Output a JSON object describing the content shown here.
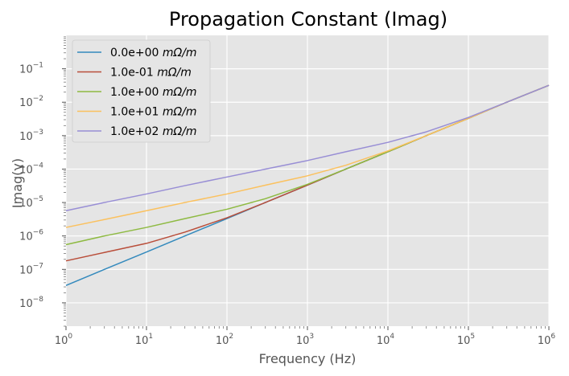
{
  "chart_data": {
    "type": "line",
    "title": "Propagation Constant (Imag)",
    "xlabel": "Frequency (Hz)",
    "ylabel": "Imag(γ)",
    "x_scale": "log",
    "y_scale": "log",
    "xlim": [
      1,
      1000000
    ],
    "ylim": [
      2e-09,
      1
    ],
    "grid": true,
    "legend_position": "upper-left",
    "background": "#E5E5E5",
    "x_ticks": [
      {
        "value": 1,
        "mantissa": "10",
        "exp": "0"
      },
      {
        "value": 10,
        "mantissa": "10",
        "exp": "1"
      },
      {
        "value": 100,
        "mantissa": "10",
        "exp": "2"
      },
      {
        "value": 1000,
        "mantissa": "10",
        "exp": "3"
      },
      {
        "value": 10000,
        "mantissa": "10",
        "exp": "4"
      },
      {
        "value": 100000,
        "mantissa": "10",
        "exp": "5"
      },
      {
        "value": 1000000,
        "mantissa": "10",
        "exp": "6"
      }
    ],
    "y_ticks": [
      {
        "value": 1e-08,
        "mantissa": "10",
        "exp": "−8"
      },
      {
        "value": 1e-07,
        "mantissa": "10",
        "exp": "−7"
      },
      {
        "value": 1e-06,
        "mantissa": "10",
        "exp": "−6"
      },
      {
        "value": 1e-05,
        "mantissa": "10",
        "exp": "−5"
      },
      {
        "value": 0.0001,
        "mantissa": "10",
        "exp": "−4"
      },
      {
        "value": 0.001,
        "mantissa": "10",
        "exp": "−3"
      },
      {
        "value": 0.01,
        "mantissa": "10",
        "exp": "−2"
      },
      {
        "value": 0.1,
        "mantissa": "10",
        "exp": "−1"
      }
    ],
    "x": [
      1,
      3,
      10,
      30,
      100,
      300,
      1000,
      3000,
      10000,
      30000,
      100000,
      300000,
      1000000
    ],
    "series": [
      {
        "name_value": "0.0e+00",
        "name_unit": "mΩ/m",
        "color": "#348ABD",
        "values": [
          3.3e-08,
          1e-07,
          3.3e-07,
          1e-06,
          3.3e-06,
          1e-05,
          3.3e-05,
          0.0001,
          0.00033,
          0.001,
          0.0033,
          0.01,
          0.032
        ]
      },
      {
        "name_value": "1.0e-01",
        "name_unit": "mΩ/m",
        "color": "#B94E3A",
        "values": [
          1.8e-07,
          3.2e-07,
          6e-07,
          1.3e-06,
          3.5e-06,
          1e-05,
          3.3e-05,
          0.0001,
          0.00033,
          0.001,
          0.0033,
          0.01,
          0.032
        ]
      },
      {
        "name_value": "1.0e+00",
        "name_unit": "mΩ/m",
        "color": "#8EBA42",
        "values": [
          5.5e-07,
          1e-06,
          1.8e-06,
          3.3e-06,
          6.3e-06,
          1.3e-05,
          3.5e-05,
          0.0001,
          0.00033,
          0.001,
          0.0033,
          0.01,
          0.032
        ]
      },
      {
        "name_value": "1.0e+01",
        "name_unit": "mΩ/m",
        "color": "#FBC15E",
        "values": [
          1.8e-06,
          3.1e-06,
          5.7e-06,
          1e-05,
          1.8e-05,
          3.3e-05,
          6.3e-05,
          0.00013,
          0.00035,
          0.001,
          0.0033,
          0.01,
          0.032
        ]
      },
      {
        "name_value": "1.0e+02",
        "name_unit": "mΩ/m",
        "color": "#988ED5",
        "values": [
          5.7e-06,
          1e-05,
          1.8e-05,
          3.2e-05,
          5.8e-05,
          0.0001,
          0.00018,
          0.00033,
          0.00063,
          0.0013,
          0.0035,
          0.01,
          0.032
        ]
      }
    ]
  }
}
